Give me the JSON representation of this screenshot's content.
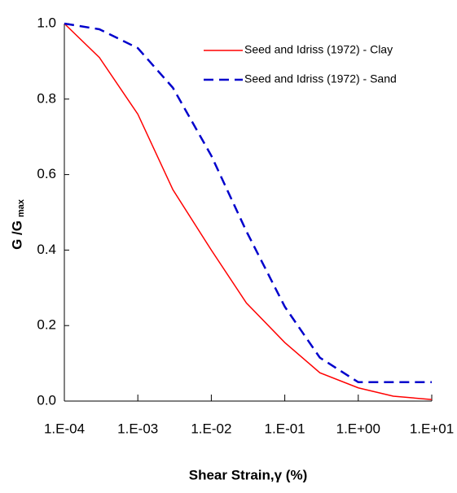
{
  "chart_data": {
    "type": "line",
    "xlabel": "Shear Strain,γ (%)",
    "ylabel": "G /G",
    "ylabel_sub": "max",
    "xscale": "log",
    "xlim": [
      0.0001,
      10
    ],
    "xticks": [
      {
        "value": 0.0001,
        "label": "1.E-04"
      },
      {
        "value": 0.001,
        "label": "1.E-03"
      },
      {
        "value": 0.01,
        "label": "1.E-02"
      },
      {
        "value": 0.1,
        "label": "1.E-01"
      },
      {
        "value": 1,
        "label": "1.E+00"
      },
      {
        "value": 10,
        "label": "1.E+01"
      }
    ],
    "ylim": [
      0,
      1
    ],
    "yticks": [
      {
        "value": 0,
        "label": "0.0"
      },
      0.2,
      0.4,
      0.6,
      0.8,
      {
        "value": 1,
        "label": "1.0"
      }
    ],
    "legend": "upper right",
    "x": [
      0.0001,
      0.0003,
      0.001,
      0.003,
      0.01,
      0.03,
      0.1,
      0.3,
      1,
      3,
      10
    ],
    "series": [
      {
        "name": "Seed and Idriss (1972) - Clay",
        "color": "#ff0000",
        "dashed": false,
        "values": [
          1.0,
          0.91,
          0.76,
          0.56,
          0.4,
          0.26,
          0.155,
          0.075,
          0.035,
          0.013,
          0.004
        ]
      },
      {
        "name": "Seed and Idriss (1972) - Sand",
        "color": "#0000cc",
        "dashed": true,
        "values": [
          1.0,
          0.985,
          0.935,
          0.83,
          0.65,
          0.45,
          0.25,
          0.115,
          0.05,
          0.05,
          0.05
        ]
      }
    ]
  }
}
